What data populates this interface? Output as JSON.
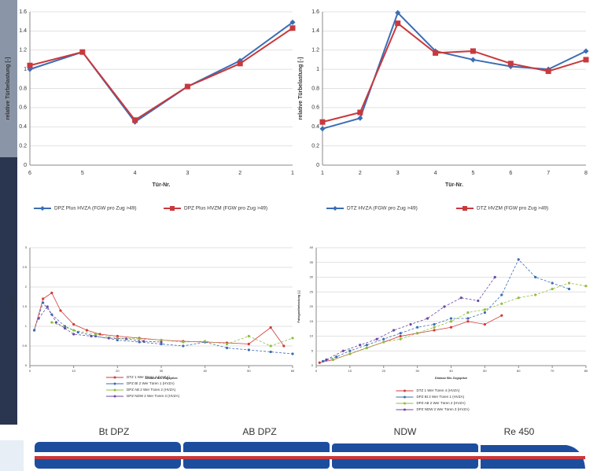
{
  "chart_data": [
    {
      "type": "line",
      "y_label": "relative Türbelastung [-]",
      "x_label": "Tür-Nr.",
      "categories": [
        "6",
        "5",
        "4",
        "3",
        "2",
        "1"
      ],
      "ylim": [
        0,
        1.6
      ],
      "yticks": [
        0,
        0.2,
        0.4,
        0.6,
        0.8,
        1,
        1.2,
        1.4,
        1.6
      ],
      "grid": true,
      "series": [
        {
          "name": "DPZ Plus HVZA (FGW pro Zug >49)",
          "color": "#3b6db5",
          "marker": "diamond",
          "values": [
            1.0,
            1.18,
            0.45,
            0.82,
            1.09,
            1.49
          ]
        },
        {
          "name": "DPZ Plus HVZM (FGW pro Zug >49)",
          "color": "#c8393d",
          "marker": "square",
          "values": [
            1.04,
            1.18,
            0.47,
            0.82,
            1.06,
            1.43
          ]
        }
      ]
    },
    {
      "type": "line",
      "y_label": "relative Türbelastung [-]",
      "x_label": "Tür-Nr.",
      "categories": [
        "1",
        "2",
        "3",
        "4",
        "5",
        "6",
        "7",
        "8"
      ],
      "ylim": [
        0,
        1.6
      ],
      "yticks": [
        0,
        0.2,
        0.4,
        0.6,
        0.8,
        1,
        1.2,
        1.4,
        1.6
      ],
      "grid": true,
      "series": [
        {
          "name": "DTZ HVZA (FGW pro Zug >49)",
          "color": "#3b6db5",
          "marker": "diamond",
          "values": [
            0.38,
            0.49,
            1.59,
            1.19,
            1.1,
            1.03,
            1.0,
            1.19
          ]
        },
        {
          "name": "DTZ HVZM (FGW pro Zug >49)",
          "color": "#c8393d",
          "marker": "square",
          "values": [
            0.45,
            0.55,
            1.48,
            1.17,
            1.19,
            1.06,
            0.98,
            1.1
          ]
        }
      ]
    },
    {
      "type": "scatter-line",
      "y_label": "Türbelastung [-]",
      "x_label": "Distanz Bis Zugspitze",
      "xlim": [
        0,
        60
      ],
      "xticks": [
        0,
        10,
        20,
        30,
        40,
        50,
        60
      ],
      "ylim": [
        0,
        3
      ],
      "yticks": [
        0,
        0.5,
        1,
        1.5,
        2,
        2.5,
        3
      ],
      "grid": true,
      "series": [
        {
          "name": "DTZ 1 Wer Türen 4 (HVZA)",
          "color": "#d23a3a",
          "x": [
            1,
            3,
            5,
            7,
            10,
            13,
            16,
            20,
            25,
            30,
            35,
            40,
            45,
            50,
            55,
            58
          ],
          "values": [
            0.9,
            1.7,
            1.85,
            1.4,
            1.05,
            0.9,
            0.8,
            0.75,
            0.7,
            0.65,
            0.62,
            0.6,
            0.58,
            0.55,
            0.97,
            0.5
          ]
        },
        {
          "name": "DPZ Bt 2 Wer Türen 1 (HVZA)",
          "color": "#3b6db5",
          "x": [
            1,
            3,
            5,
            8,
            11,
            15,
            20,
            25,
            30,
            35,
            40,
            45,
            50,
            55,
            60
          ],
          "values": [
            0.9,
            1.6,
            1.3,
            1.0,
            0.85,
            0.75,
            0.65,
            0.6,
            0.55,
            0.5,
            0.6,
            0.45,
            0.4,
            0.35,
            0.3
          ]
        },
        {
          "name": "DPZ AB 2 Wer Türen 2 (HVZA)",
          "color": "#8fbf3f",
          "x": [
            5,
            10,
            15,
            20,
            25,
            30,
            35,
            40,
            45,
            50,
            55,
            60
          ],
          "values": [
            1.1,
            0.9,
            0.8,
            0.7,
            0.68,
            0.65,
            0.6,
            0.62,
            0.55,
            0.75,
            0.5,
            0.7
          ]
        },
        {
          "name": "DPZ NDW 2 Wer Türen 3 (HVZA)",
          "color": "#6a4aa5",
          "x": [
            2,
            4,
            6,
            8,
            10,
            14,
            18,
            22,
            26,
            30
          ],
          "values": [
            1.2,
            1.5,
            1.1,
            0.95,
            0.8,
            0.75,
            0.7,
            0.68,
            0.62,
            0.6
          ]
        }
      ]
    },
    {
      "type": "scatter-line",
      "y_label": "Fahrgastbelastung [-]",
      "x_label": "Distanz Bis Zugspitze",
      "xlim": [
        0,
        80
      ],
      "xticks": [
        0,
        10,
        20,
        30,
        40,
        50,
        60,
        70,
        80
      ],
      "ylim": [
        0,
        40
      ],
      "yticks": [
        0,
        5,
        10,
        15,
        20,
        25,
        30,
        35,
        40
      ],
      "grid": true,
      "series": [
        {
          "name": "DTZ 1 Wer Türen 4 (HVZA)",
          "color": "#d23a3a",
          "x": [
            1,
            5,
            10,
            15,
            20,
            25,
            30,
            35,
            40,
            45,
            50,
            55
          ],
          "values": [
            1,
            2,
            4,
            6,
            8,
            10,
            11,
            12,
            13,
            15,
            14,
            17
          ]
        },
        {
          "name": "DPZ Bt 2 Wer Türen 1 (HVZA)",
          "color": "#3b6db5",
          "x": [
            2,
            6,
            10,
            15,
            20,
            25,
            30,
            35,
            40,
            45,
            50,
            55,
            60,
            65,
            70,
            75
          ],
          "values": [
            1.5,
            3,
            5,
            7,
            9,
            11,
            13,
            14,
            16,
            16,
            18,
            24,
            36,
            30,
            28,
            26
          ]
        },
        {
          "name": "DPZ AB 2 Wer Türen 2 (HVZA)",
          "color": "#8fbf3f",
          "x": [
            5,
            10,
            15,
            20,
            25,
            30,
            35,
            40,
            45,
            50,
            55,
            60,
            65,
            70,
            75,
            80
          ],
          "values": [
            2,
            4,
            6,
            8,
            9,
            11,
            13,
            15,
            18,
            19,
            21,
            23,
            24,
            26,
            28,
            27
          ]
        },
        {
          "name": "DPZ NDW 2 Wer Türen 3 (HVZA)",
          "color": "#6a4aa5",
          "x": [
            3,
            8,
            13,
            18,
            23,
            28,
            33,
            38,
            43,
            48,
            53
          ],
          "values": [
            2,
            5,
            7,
            9,
            12,
            14,
            16,
            20,
            23,
            22,
            30
          ]
        }
      ]
    }
  ],
  "train": {
    "labels": [
      "Bt DPZ",
      "AB DPZ",
      "NDW",
      "Re 450"
    ]
  }
}
